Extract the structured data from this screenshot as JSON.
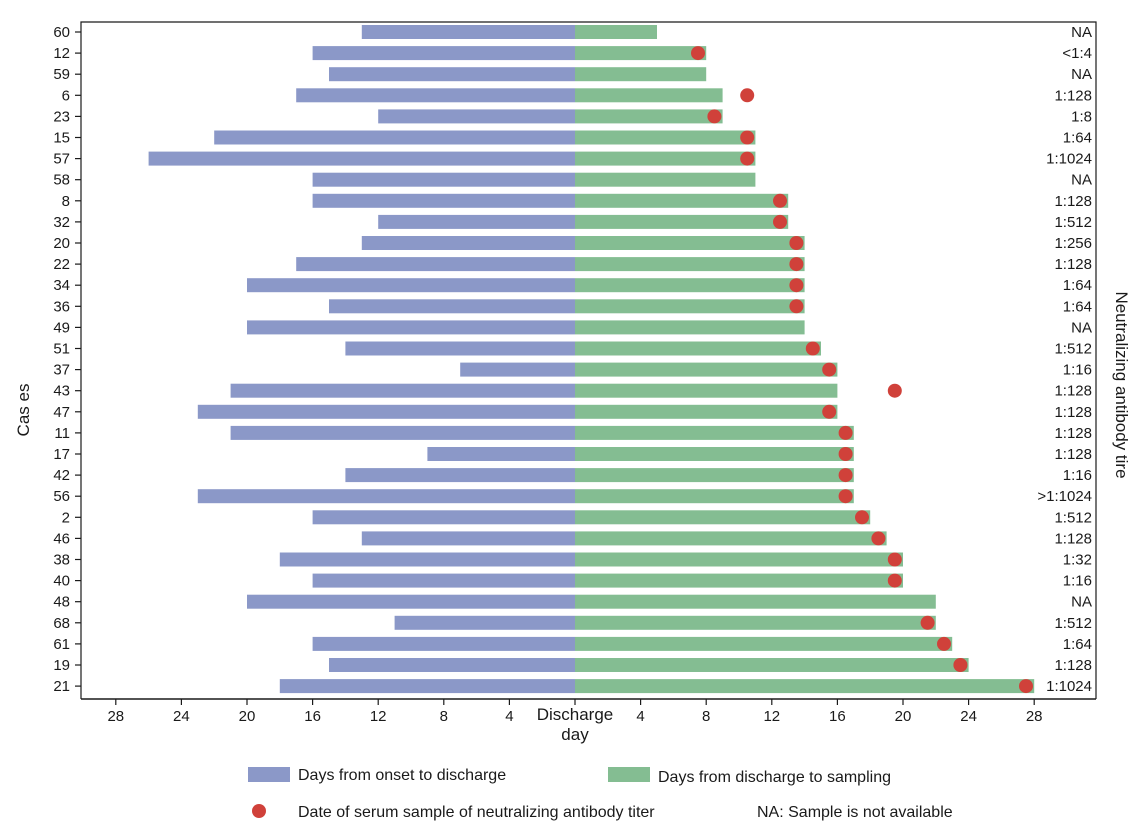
{
  "chart_data": {
    "type": "bar",
    "orientation": "horizontal-diverging",
    "ylabel": "Cas es",
    "y2label": "Neutralizing antibody tire",
    "xlabel_line1": "Discharge",
    "xlabel_line2": "day",
    "xlim": [
      -28,
      28
    ],
    "xticks_left": [
      "28",
      "24",
      "20",
      "16",
      "12",
      "8",
      "4"
    ],
    "xticks_left_values": [
      -28,
      -24,
      -20,
      -16,
      -12,
      -8,
      -4
    ],
    "xticks_right": [
      "4",
      "8",
      "12",
      "16",
      "20",
      "24",
      "28"
    ],
    "xticks_right_values": [
      4,
      8,
      12,
      16,
      20,
      24,
      28
    ],
    "grid": false,
    "legend_position": "bottom",
    "colors": {
      "onset": "#8b98c8",
      "sampling": "#84bd92",
      "marker": "#d0413a",
      "axis": "#1a1a1a"
    },
    "series": [
      {
        "name": "Days from onset to discharge",
        "key": "onset"
      },
      {
        "name": "Days from discharge to sampling",
        "key": "sampling"
      },
      {
        "name": "Date of serum sample of neutralizing antibody titer",
        "key": "marker"
      }
    ],
    "note": "NA: Sample is not available",
    "cases": [
      {
        "case": "60",
        "onset": 13,
        "sampling": 5,
        "marker": null,
        "titer": "NA"
      },
      {
        "case": "12",
        "onset": 16,
        "sampling": 8,
        "marker": 7.5,
        "titer": "<1:4"
      },
      {
        "case": "59",
        "onset": 15,
        "sampling": 8,
        "marker": null,
        "titer": "NA"
      },
      {
        "case": "6",
        "onset": 17,
        "sampling": 9,
        "marker": 10.5,
        "titer": "1:128"
      },
      {
        "case": "23",
        "onset": 12,
        "sampling": 9,
        "marker": 8.5,
        "titer": "1:8"
      },
      {
        "case": "15",
        "onset": 22,
        "sampling": 11,
        "marker": 10.5,
        "titer": "1:64"
      },
      {
        "case": "57",
        "onset": 26,
        "sampling": 11,
        "marker": 10.5,
        "titer": "1:1024"
      },
      {
        "case": "58",
        "onset": 16,
        "sampling": 11,
        "marker": null,
        "titer": "NA"
      },
      {
        "case": "8",
        "onset": 16,
        "sampling": 13,
        "marker": 12.5,
        "titer": "1:128"
      },
      {
        "case": "32",
        "onset": 12,
        "sampling": 13,
        "marker": 12.5,
        "titer": "1:512"
      },
      {
        "case": "20",
        "onset": 13,
        "sampling": 14,
        "marker": 13.5,
        "titer": "1:256"
      },
      {
        "case": "22",
        "onset": 17,
        "sampling": 14,
        "marker": 13.5,
        "titer": "1:128"
      },
      {
        "case": "34",
        "onset": 20,
        "sampling": 14,
        "marker": 13.5,
        "titer": "1:64"
      },
      {
        "case": "36",
        "onset": 15,
        "sampling": 14,
        "marker": 13.5,
        "titer": "1:64"
      },
      {
        "case": "49",
        "onset": 20,
        "sampling": 14,
        "marker": null,
        "titer": "NA"
      },
      {
        "case": "51",
        "onset": 14,
        "sampling": 15,
        "marker": 14.5,
        "titer": "1:512"
      },
      {
        "case": "37",
        "onset": 7,
        "sampling": 16,
        "marker": 15.5,
        "titer": "1:16"
      },
      {
        "case": "43",
        "onset": 21,
        "sampling": 16,
        "marker": 19.5,
        "titer": "1:128"
      },
      {
        "case": "47",
        "onset": 23,
        "sampling": 16,
        "marker": 15.5,
        "titer": "1:128"
      },
      {
        "case": "11",
        "onset": 21,
        "sampling": 17,
        "marker": 16.5,
        "titer": "1:128"
      },
      {
        "case": "17",
        "onset": 9,
        "sampling": 17,
        "marker": 16.5,
        "titer": "1:128"
      },
      {
        "case": "42",
        "onset": 14,
        "sampling": 17,
        "marker": 16.5,
        "titer": "1:16"
      },
      {
        "case": "56",
        "onset": 23,
        "sampling": 17,
        "marker": 16.5,
        "titer": ">1:1024"
      },
      {
        "case": "2",
        "onset": 16,
        "sampling": 18,
        "marker": 17.5,
        "titer": "1:512"
      },
      {
        "case": "46",
        "onset": 13,
        "sampling": 19,
        "marker": 18.5,
        "titer": "1:128"
      },
      {
        "case": "38",
        "onset": 18,
        "sampling": 20,
        "marker": 19.5,
        "titer": "1:32"
      },
      {
        "case": "40",
        "onset": 16,
        "sampling": 20,
        "marker": 19.5,
        "titer": "1:16"
      },
      {
        "case": "48",
        "onset": 20,
        "sampling": 22,
        "marker": null,
        "titer": "NA"
      },
      {
        "case": "68",
        "onset": 11,
        "sampling": 22,
        "marker": 21.5,
        "titer": "1:512"
      },
      {
        "case": "61",
        "onset": 16,
        "sampling": 23,
        "marker": 22.5,
        "titer": "1:64"
      },
      {
        "case": "19",
        "onset": 15,
        "sampling": 24,
        "marker": 23.5,
        "titer": "1:128"
      },
      {
        "case": "21",
        "onset": 18,
        "sampling": 28,
        "marker": 27.5,
        "titer": "1:1024"
      }
    ]
  }
}
